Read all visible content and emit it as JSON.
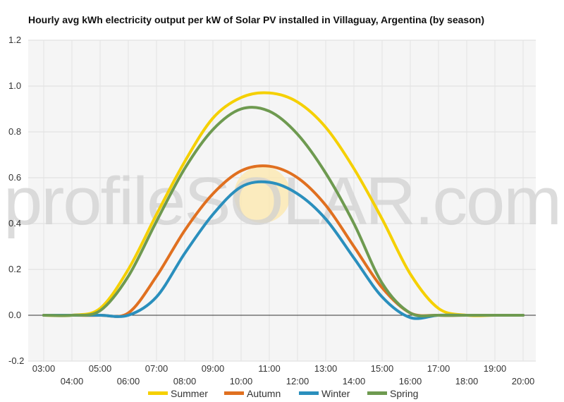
{
  "chart_data": {
    "type": "line",
    "title": "Hourly avg kWh electricity output per kW of Solar PV installed in Villaguay, Argentina (by season)",
    "xlabel": "",
    "ylabel": "",
    "ylim": [
      -0.2,
      1.2
    ],
    "yticks": [
      "-0.2",
      "0.0",
      "0.2",
      "0.4",
      "0.6",
      "0.8",
      "1.0",
      "1.2"
    ],
    "x": [
      "03:00",
      "04:00",
      "05:00",
      "06:00",
      "07:00",
      "08:00",
      "09:00",
      "10:00",
      "11:00",
      "12:00",
      "13:00",
      "14:00",
      "15:00",
      "16:00",
      "17:00",
      "18:00",
      "19:00",
      "20:00"
    ],
    "grid": true,
    "legend_position": "bottom",
    "watermark": "profileSOLAR.com",
    "series": [
      {
        "name": "Summer",
        "color": "#f5d000",
        "values": [
          0,
          0,
          0.03,
          0.2,
          0.44,
          0.67,
          0.86,
          0.95,
          0.97,
          0.93,
          0.82,
          0.64,
          0.42,
          0.18,
          0.03,
          0,
          0,
          0
        ]
      },
      {
        "name": "Autumn",
        "color": "#e07020",
        "values": [
          0,
          0,
          0,
          0.01,
          0.17,
          0.37,
          0.53,
          0.63,
          0.65,
          0.6,
          0.48,
          0.3,
          0.12,
          0.01,
          0,
          0,
          0,
          0
        ]
      },
      {
        "name": "Winter",
        "color": "#2a8fbd",
        "values": [
          0,
          0,
          0,
          0,
          0.08,
          0.27,
          0.44,
          0.56,
          0.58,
          0.53,
          0.42,
          0.25,
          0.08,
          -0.01,
          0,
          0,
          0,
          0
        ]
      },
      {
        "name": "Spring",
        "color": "#6e9a50",
        "values": [
          0,
          0,
          0.02,
          0.17,
          0.41,
          0.64,
          0.81,
          0.9,
          0.89,
          0.79,
          0.62,
          0.4,
          0.14,
          0.01,
          0,
          0,
          0,
          0
        ]
      }
    ]
  }
}
